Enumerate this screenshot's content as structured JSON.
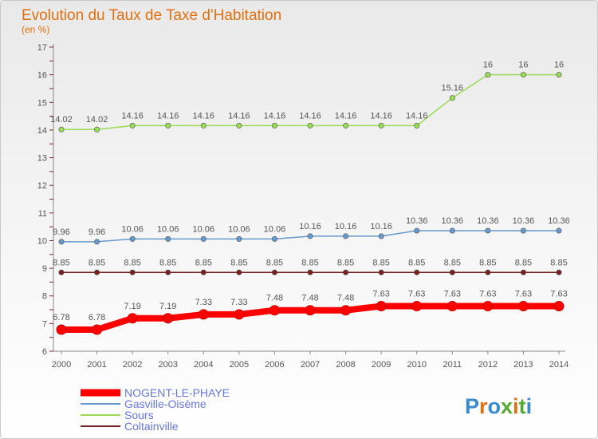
{
  "chart_data": {
    "type": "line",
    "title": "Evolution du Taux de Taxe d'Habitation",
    "ylabel": "(en %)",
    "xlabel": "",
    "ylim": [
      6,
      17
    ],
    "yticks": [
      6,
      7,
      8,
      9,
      10,
      11,
      12,
      13,
      14,
      15,
      16,
      17
    ],
    "categories": [
      "2000",
      "2001",
      "2002",
      "2003",
      "2004",
      "2005",
      "2006",
      "2007",
      "2008",
      "2009",
      "2010",
      "2011",
      "2012",
      "2013",
      "2014"
    ],
    "series": [
      {
        "name": "NOGENT-LE-PHAYE",
        "color": "#ff0000",
        "values": [
          6.78,
          6.78,
          7.19,
          7.19,
          7.33,
          7.33,
          7.48,
          7.48,
          7.48,
          7.63,
          7.63,
          7.63,
          7.63,
          7.63,
          7.63
        ],
        "labels": [
          "6.78",
          "6.78",
          "7.19",
          "7.19",
          "7.33",
          "7.33",
          "7.48",
          "7.48",
          "7.48",
          "7.63",
          "7.63",
          "7.63",
          "7.63",
          "7.63",
          "7.63"
        ]
      },
      {
        "name": "Gasville-Oisème",
        "color": "#6699cc",
        "values": [
          9.96,
          9.96,
          10.06,
          10.06,
          10.06,
          10.06,
          10.06,
          10.16,
          10.16,
          10.16,
          10.36,
          10.36,
          10.36,
          10.36,
          10.36
        ],
        "labels": [
          "9.96",
          "9.96",
          "10.06",
          "10.06",
          "10.06",
          "10.06",
          "10.06",
          "10.16",
          "10.16",
          "10.16",
          "10.36",
          "10.36",
          "10.36",
          "10.36",
          "10.36"
        ]
      },
      {
        "name": "Sours",
        "color": "#99dd55",
        "values": [
          14.02,
          14.02,
          14.16,
          14.16,
          14.16,
          14.16,
          14.16,
          14.16,
          14.16,
          14.16,
          14.16,
          15.16,
          16,
          16,
          16
        ],
        "labels": [
          "14.02",
          "14.02",
          "14.16",
          "14.16",
          "14.16",
          "14.16",
          "14.16",
          "14.16",
          "14.16",
          "14.16",
          "14.16",
          "15.16",
          "16",
          "16",
          "16"
        ]
      },
      {
        "name": "Coltainville",
        "color": "#772222",
        "values": [
          8.85,
          8.85,
          8.85,
          8.85,
          8.85,
          8.85,
          8.85,
          8.85,
          8.85,
          8.85,
          8.85,
          8.85,
          8.85,
          8.85,
          8.85
        ],
        "labels": [
          "8.85",
          "8.85",
          "8.85",
          "8.85",
          "8.85",
          "8.85",
          "8.85",
          "8.85",
          "8.85",
          "8.85",
          "8.85",
          "8.85",
          "8.85",
          "8.85",
          "8.85"
        ]
      }
    ],
    "legend_position": "bottom-left",
    "grid": false
  },
  "logo": {
    "text": "Proxiti"
  }
}
